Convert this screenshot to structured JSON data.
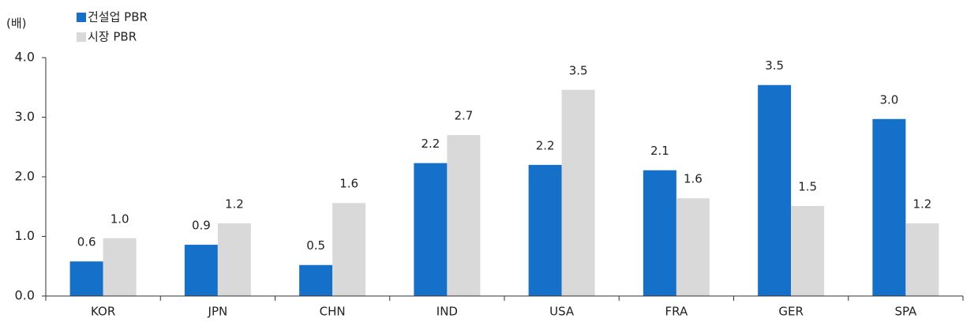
{
  "chart_data": {
    "type": "bar",
    "y_label": "(배)",
    "categories": [
      "KOR",
      "JPN",
      "CHN",
      "IND",
      "USA",
      "FRA",
      "GER",
      "SPA"
    ],
    "series": [
      {
        "name": "건설업 PBR",
        "color": "#1470c8",
        "values": [
          0.58,
          0.86,
          0.52,
          2.23,
          2.2,
          2.11,
          3.54,
          2.97
        ],
        "value_labels": [
          "0.6",
          "0.9",
          "0.5",
          "2.2",
          "2.2",
          "2.1",
          "3.5",
          "3.0"
        ]
      },
      {
        "name": "시장 PBR",
        "color": "#d9d9d9",
        "values": [
          0.97,
          1.22,
          1.56,
          2.7,
          3.46,
          1.64,
          1.51,
          1.22
        ],
        "value_labels": [
          "1.0",
          "1.2",
          "1.6",
          "2.7",
          "3.5",
          "1.6",
          "1.5",
          "1.2"
        ]
      }
    ],
    "ylim": [
      0,
      4
    ],
    "yticks": [
      {
        "value": 0,
        "label": "0.0"
      },
      {
        "value": 1,
        "label": "1.0"
      },
      {
        "value": 2,
        "label": "2.0"
      },
      {
        "value": 3,
        "label": "3.0"
      },
      {
        "value": 4,
        "label": "4.0"
      }
    ],
    "legend": "top-left"
  }
}
